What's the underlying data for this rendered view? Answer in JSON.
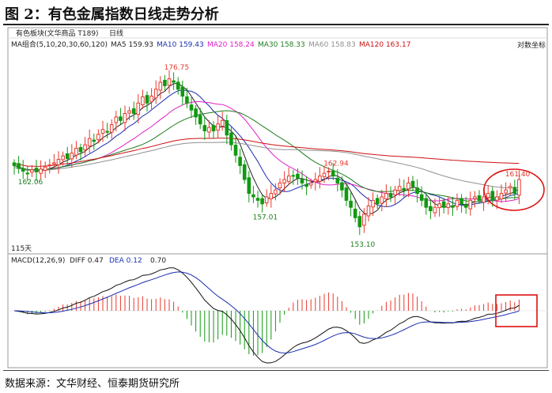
{
  "figure": {
    "title": "图 2：有色金属指数日线走势分析",
    "source": "数据来源：文华财经、恒泰期货研究所"
  },
  "toolbar": {
    "symbol": "有色板块(文华商品 T189)",
    "period": "日线",
    "log_coord": "对数坐标"
  },
  "colors": {
    "up": "#e8392e",
    "down": "#119911",
    "ma5": "#222222",
    "ma10": "#1a2fb0",
    "ma20": "#e020c8",
    "ma30": "#1e7d1e",
    "ma60": "#909090",
    "ma120": "#cc1111",
    "highlight": "#dd1111"
  },
  "ma_legend": {
    "group": "MA组合(5,10,20,30,60,120)",
    "items": [
      {
        "label": "MA5 159.93",
        "color": "#222222"
      },
      {
        "label": "MA10 159.43",
        "color": "#1a2fb0"
      },
      {
        "label": "MA20 158.24",
        "color": "#e020c8"
      },
      {
        "label": "MA30 158.33",
        "color": "#1e7d1e"
      },
      {
        "label": "MA60 158.83",
        "color": "#909090"
      },
      {
        "label": "MA120 163.17",
        "color": "#cc1111"
      }
    ]
  },
  "macd_legend": {
    "group": "MACD(12,26,9)",
    "diff": "DIFF 0.47",
    "dea": "DEA 0.12",
    "macd": "0.70"
  },
  "day_count": "115天",
  "chart_data": {
    "type": "candlestick",
    "price_range": [
      151.5,
      179.5
    ],
    "annotations": [
      {
        "label": "176.75",
        "x": 36,
        "value": 176.75
      },
      {
        "label": "162.06",
        "x": 3,
        "value": 162.06
      },
      {
        "label": "157.01",
        "x": 56,
        "value": 157.01
      },
      {
        "label": "162.94",
        "x": 72,
        "value": 162.94
      },
      {
        "label": "153.10",
        "x": 78,
        "value": 153.1
      },
      {
        "label": "161.40",
        "x": 113,
        "value": 161.4
      }
    ],
    "close": [
      163.4,
      163.0,
      162.6,
      162.3,
      162.8,
      162.5,
      162.9,
      163.2,
      163.5,
      163.8,
      164.3,
      164.8,
      164.4,
      165.2,
      165.9,
      165.4,
      166.4,
      167.3,
      166.9,
      167.9,
      168.6,
      168.3,
      169.3,
      170.4,
      169.9,
      170.9,
      171.3,
      170.9,
      172.4,
      173.3,
      172.4,
      173.4,
      174.4,
      175.4,
      174.9,
      175.9,
      175.4,
      174.4,
      173.4,
      172.4,
      171.4,
      170.4,
      169.4,
      168.4,
      168.9,
      168.4,
      169.4,
      169.9,
      167.8,
      166.4,
      164.9,
      163.4,
      161.4,
      159.4,
      158.9,
      158.4,
      157.9,
      158.9,
      159.4,
      159.9,
      160.9,
      161.4,
      161.9,
      161.9,
      161.6,
      160.9,
      160.4,
      160.9,
      161.4,
      161.9,
      162.3,
      162.6,
      161.9,
      160.9,
      159.9,
      158.4,
      157.4,
      155.9,
      154.6,
      156.4,
      157.6,
      158.4,
      157.9,
      158.9,
      159.4,
      158.9,
      159.9,
      160.4,
      159.9,
      160.9,
      160.4,
      159.4,
      158.4,
      157.4,
      156.9,
      157.4,
      157.9,
      157.4,
      157.9,
      157.4,
      158.4,
      157.9,
      157.4,
      158.4,
      158.9,
      158.4,
      158.9,
      159.4,
      158.4,
      158.9,
      159.4,
      159.9,
      160.4,
      159.4,
      161.4
    ]
  }
}
